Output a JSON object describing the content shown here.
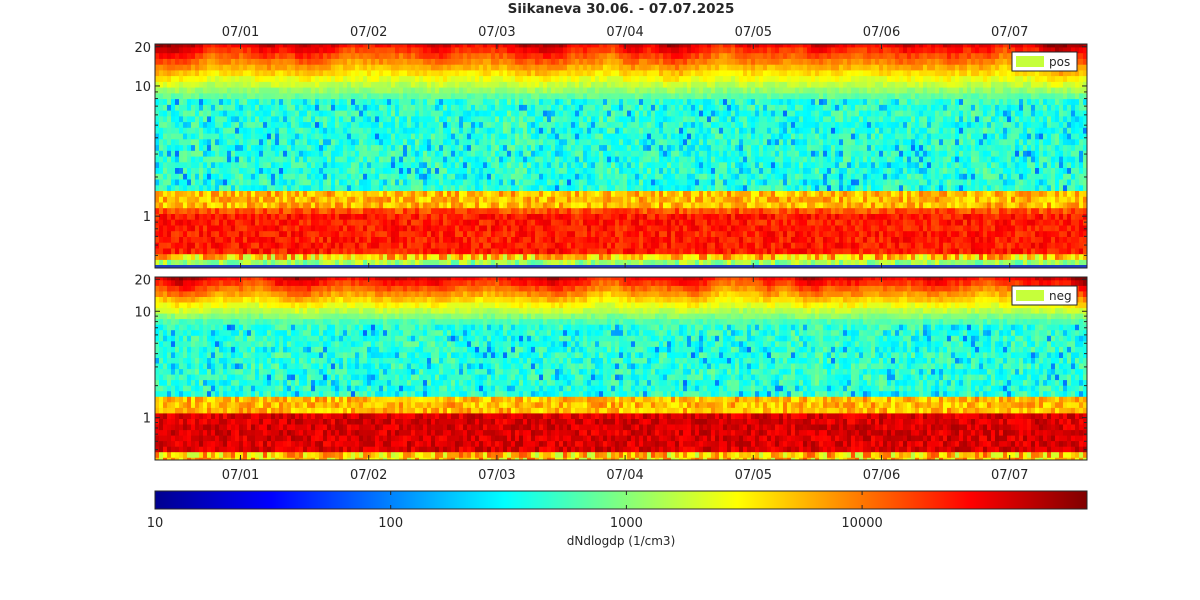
{
  "chart_data": {
    "title": "Siikaneva 30.06.  -  07.07.2025",
    "type": "heatmap",
    "x_ticks": [
      "07/01",
      "07/02",
      "07/03",
      "07/04",
      "07/05",
      "07/06",
      "07/07"
    ],
    "panels": [
      {
        "legend": "pos",
        "legend_color": "#c6ff3a",
        "ylim": [
          0.4,
          21
        ],
        "yscale": "log",
        "y_ticks": [
          {
            "value": 1,
            "label": "1"
          },
          {
            "value": 10,
            "label": "10"
          },
          {
            "value": 20,
            "label": "20"
          }
        ]
      },
      {
        "legend": "neg",
        "legend_color": "#c6ff3a",
        "ylim": [
          0.4,
          21
        ],
        "yscale": "log",
        "y_ticks": [
          {
            "value": 1,
            "label": "1"
          },
          {
            "value": 10,
            "label": "10"
          },
          {
            "value": 20,
            "label": "20"
          }
        ]
      }
    ],
    "colorbar": {
      "label": "dNdlogdp (1/cm3)",
      "scale": "log",
      "range": [
        10,
        90000
      ],
      "ticks": [
        {
          "value": 10,
          "label": "10"
        },
        {
          "value": 100,
          "label": "100"
        },
        {
          "value": 1000,
          "label": "1000"
        },
        {
          "value": 10000,
          "label": "10000"
        }
      ],
      "colormap": "jet"
    }
  }
}
